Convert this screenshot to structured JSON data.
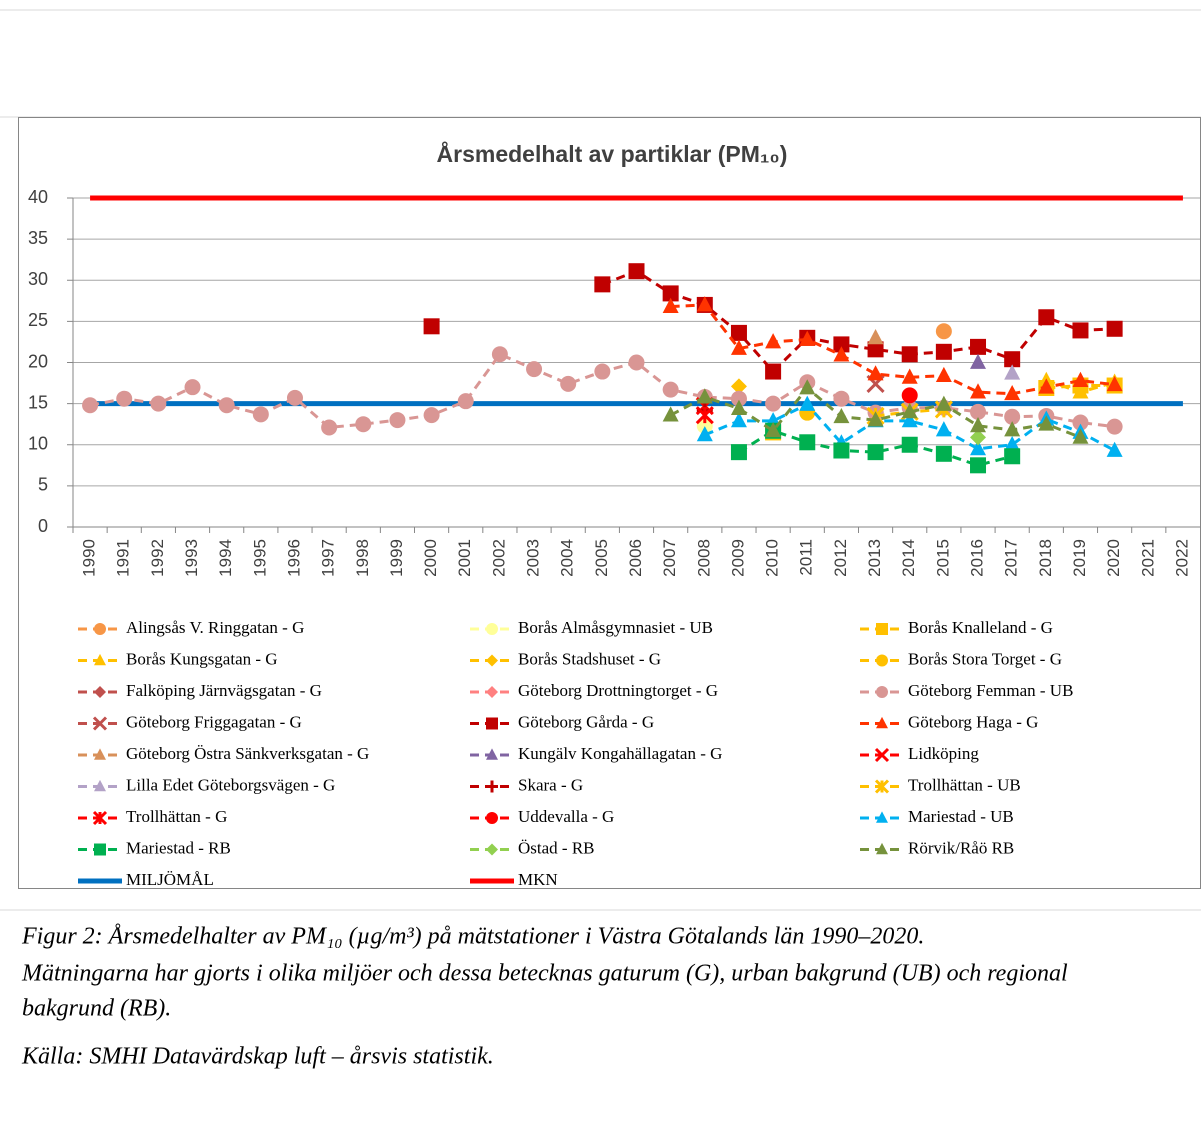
{
  "chart_data": {
    "type": "line",
    "title": "Årsmedelhalt av partiklar (PM₁₀)",
    "categories": [
      "1990",
      "1991",
      "1992",
      "1993",
      "1994",
      "1995",
      "1996",
      "1997",
      "1998",
      "1999",
      "2000",
      "2001",
      "2002",
      "2003",
      "2004",
      "2005",
      "2006",
      "2007",
      "2008",
      "2009",
      "2010",
      "2011",
      "2012",
      "2013",
      "2014",
      "2015",
      "2016",
      "2017",
      "2018",
      "2019",
      "2020",
      "2021",
      "2022"
    ],
    "ylim": [
      0,
      40
    ],
    "yticks": [
      0,
      5,
      10,
      15,
      20,
      25,
      30,
      35,
      40
    ],
    "grid": true,
    "legend": "bottom",
    "series": [
      {
        "name": "Alingsås V. Ringgatan - G",
        "color": "#f79646",
        "marker": "circle",
        "values": [
          null,
          null,
          null,
          null,
          null,
          null,
          null,
          null,
          null,
          null,
          null,
          null,
          null,
          null,
          null,
          null,
          null,
          null,
          null,
          null,
          null,
          null,
          null,
          null,
          null,
          23.8,
          null,
          null,
          null,
          null,
          null,
          null,
          null
        ]
      },
      {
        "name": "Borås Almåsgymnasiet - UB",
        "color": "#ffff99",
        "marker": "circle",
        "values": [
          null,
          null,
          null,
          null,
          null,
          null,
          null,
          null,
          null,
          null,
          null,
          null,
          null,
          null,
          null,
          null,
          null,
          null,
          12.3,
          null,
          null,
          null,
          null,
          null,
          null,
          null,
          null,
          null,
          null,
          null,
          null,
          null,
          null
        ]
      },
      {
        "name": "Borås Knalleland - G",
        "color": "#ffc000",
        "marker": "square",
        "values": [
          null,
          null,
          null,
          null,
          null,
          null,
          null,
          null,
          null,
          null,
          null,
          null,
          null,
          null,
          null,
          null,
          null,
          null,
          null,
          null,
          11.5,
          null,
          null,
          null,
          null,
          null,
          null,
          null,
          16.9,
          17.2,
          17.2,
          null,
          null
        ]
      },
      {
        "name": "Borås Kungsgatan - G",
        "color": "#ffc000",
        "marker": "triangle",
        "values": [
          null,
          null,
          null,
          null,
          null,
          null,
          null,
          null,
          null,
          null,
          null,
          null,
          null,
          null,
          null,
          null,
          null,
          null,
          null,
          null,
          null,
          null,
          null,
          null,
          null,
          null,
          null,
          null,
          17.8,
          16.4,
          17.6,
          null,
          null
        ]
      },
      {
        "name": "Borås Stadshuset - G",
        "color": "#ffc000",
        "marker": "diamond",
        "values": [
          null,
          null,
          null,
          null,
          null,
          null,
          null,
          null,
          null,
          null,
          null,
          null,
          null,
          null,
          null,
          null,
          null,
          null,
          null,
          17.1,
          null,
          null,
          null,
          null,
          null,
          null,
          null,
          null,
          null,
          null,
          null,
          null,
          null
        ]
      },
      {
        "name": "Borås Stora Torget - G",
        "color": "#ffc000",
        "marker": "circle",
        "values": [
          null,
          null,
          null,
          null,
          null,
          null,
          null,
          null,
          null,
          null,
          null,
          null,
          null,
          null,
          null,
          null,
          null,
          null,
          null,
          null,
          null,
          13.9,
          null,
          null,
          null,
          null,
          null,
          null,
          null,
          null,
          null,
          null,
          null
        ]
      },
      {
        "name": "Falköping Järnvägsgatan - G",
        "color": "#c0504d",
        "marker": "diamond",
        "values": [
          null,
          null,
          null,
          null,
          null,
          null,
          null,
          null,
          null,
          null,
          null,
          null,
          null,
          null,
          null,
          null,
          null,
          null,
          null,
          null,
          null,
          null,
          null,
          null,
          null,
          null,
          null,
          null,
          null,
          null,
          null,
          null,
          null
        ]
      },
      {
        "name": "Göteborg Drottningtorget - G",
        "color": "#ff8080",
        "marker": "diamond",
        "values": [
          null,
          null,
          null,
          null,
          null,
          null,
          null,
          null,
          null,
          null,
          null,
          null,
          null,
          null,
          null,
          null,
          null,
          null,
          null,
          null,
          null,
          null,
          null,
          null,
          null,
          null,
          null,
          null,
          null,
          null,
          null,
          null,
          null
        ]
      },
      {
        "name": "Göteborg Femman - UB",
        "color": "#d99694",
        "marker": "circle",
        "values": [
          14.8,
          15.6,
          15.0,
          17.0,
          14.8,
          13.7,
          15.7,
          12.1,
          12.5,
          13.0,
          13.6,
          15.3,
          21.0,
          19.2,
          17.4,
          18.9,
          20.0,
          16.7,
          15.8,
          15.6,
          15.0,
          17.6,
          15.6,
          13.9,
          14.5,
          14.5,
          14.0,
          13.4,
          13.5,
          12.7,
          12.2,
          null,
          null
        ]
      },
      {
        "name": "Göteborg Friggagatan - G",
        "color": "#c0504d",
        "marker": "x",
        "values": [
          null,
          null,
          null,
          null,
          null,
          null,
          null,
          null,
          null,
          null,
          null,
          null,
          null,
          null,
          null,
          null,
          null,
          null,
          null,
          null,
          null,
          null,
          null,
          17.4,
          null,
          null,
          null,
          null,
          null,
          null,
          null,
          null,
          null
        ]
      },
      {
        "name": "Göteborg Gårda - G",
        "color": "#c00000",
        "marker": "square",
        "values": [
          null,
          null,
          null,
          null,
          null,
          null,
          null,
          null,
          null,
          null,
          24.4,
          null,
          null,
          null,
          null,
          29.5,
          31.1,
          28.4,
          27.0,
          23.6,
          18.9,
          23.0,
          22.2,
          21.6,
          21.0,
          21.3,
          21.9,
          20.4,
          25.5,
          23.9,
          24.1,
          null,
          null
        ]
      },
      {
        "name": "Göteborg Haga - G",
        "color": "#ff3300",
        "marker": "triangle",
        "values": [
          null,
          null,
          null,
          null,
          null,
          null,
          null,
          null,
          null,
          null,
          null,
          null,
          null,
          null,
          null,
          null,
          null,
          26.8,
          27.0,
          21.7,
          22.5,
          22.8,
          20.9,
          18.6,
          18.2,
          18.4,
          16.4,
          16.2,
          17.0,
          17.8,
          17.3,
          null,
          null
        ]
      },
      {
        "name": "Göteborg Östra Sänkverksgatan - G",
        "color": "#d8905a",
        "marker": "triangle",
        "values": [
          null,
          null,
          null,
          null,
          null,
          null,
          null,
          null,
          null,
          null,
          null,
          null,
          null,
          null,
          null,
          null,
          null,
          null,
          null,
          null,
          null,
          null,
          null,
          23.0,
          null,
          null,
          null,
          null,
          null,
          null,
          null,
          null,
          null
        ]
      },
      {
        "name": "Kungälv Kongahällagatan - G",
        "color": "#8064a2",
        "marker": "triangle",
        "values": [
          null,
          null,
          null,
          null,
          null,
          null,
          null,
          null,
          null,
          null,
          null,
          null,
          null,
          null,
          null,
          null,
          null,
          null,
          null,
          null,
          null,
          null,
          null,
          null,
          null,
          null,
          20.0,
          null,
          null,
          null,
          null,
          null,
          null
        ]
      },
      {
        "name": "Lidköping",
        "color": "#ff0000",
        "marker": "x",
        "values": [
          null,
          null,
          null,
          null,
          null,
          null,
          null,
          null,
          null,
          null,
          null,
          null,
          null,
          null,
          null,
          null,
          null,
          null,
          14.7,
          null,
          null,
          null,
          null,
          null,
          null,
          null,
          null,
          null,
          null,
          null,
          null,
          null,
          null
        ]
      },
      {
        "name": "Lilla Edet Göteborgsvägen - G",
        "color": "#b3a2c7",
        "marker": "triangle",
        "values": [
          null,
          null,
          null,
          null,
          null,
          null,
          null,
          null,
          null,
          null,
          null,
          null,
          null,
          null,
          null,
          null,
          null,
          null,
          null,
          null,
          null,
          null,
          null,
          null,
          null,
          null,
          null,
          18.7,
          null,
          null,
          null,
          null,
          null
        ]
      },
      {
        "name": "Skara - G",
        "color": "#c00000",
        "marker": "plus",
        "values": [
          null,
          null,
          null,
          null,
          null,
          null,
          null,
          null,
          null,
          null,
          null,
          null,
          null,
          null,
          null,
          null,
          null,
          null,
          14.2,
          null,
          null,
          null,
          null,
          null,
          null,
          null,
          null,
          null,
          null,
          null,
          null,
          null,
          null
        ]
      },
      {
        "name": "Trollhättan - UB",
        "color": "#ffc000",
        "marker": "star",
        "values": [
          null,
          null,
          null,
          null,
          null,
          null,
          null,
          null,
          null,
          null,
          null,
          null,
          null,
          null,
          null,
          null,
          null,
          null,
          null,
          null,
          null,
          null,
          null,
          13.5,
          14.0,
          14.3,
          null,
          null,
          null,
          null,
          null,
          null,
          null
        ]
      },
      {
        "name": "Trollhättan - G",
        "color": "#ff0000",
        "marker": "star",
        "values": [
          null,
          null,
          null,
          null,
          null,
          null,
          null,
          null,
          null,
          null,
          null,
          null,
          null,
          null,
          null,
          null,
          null,
          null,
          13.6,
          null,
          null,
          null,
          null,
          null,
          null,
          null,
          null,
          null,
          null,
          null,
          null,
          null,
          null
        ]
      },
      {
        "name": "Uddevalla - G",
        "color": "#ff0000",
        "marker": "circle",
        "values": [
          null,
          null,
          null,
          null,
          null,
          null,
          null,
          null,
          null,
          null,
          null,
          null,
          null,
          null,
          null,
          null,
          null,
          null,
          null,
          null,
          null,
          null,
          null,
          null,
          16.0,
          null,
          null,
          null,
          null,
          null,
          null,
          null,
          null
        ]
      },
      {
        "name": "Mariestad - UB",
        "color": "#00b0f0",
        "marker": "triangle",
        "values": [
          null,
          null,
          null,
          null,
          null,
          null,
          null,
          null,
          null,
          null,
          null,
          null,
          null,
          null,
          null,
          null,
          null,
          null,
          11.2,
          12.9,
          12.9,
          14.9,
          10.2,
          12.9,
          12.9,
          11.8,
          9.5,
          10.0,
          13.1,
          11.5,
          9.3,
          null,
          null
        ]
      },
      {
        "name": "Mariestad - RB",
        "color": "#00b050",
        "marker": "square",
        "values": [
          null,
          null,
          null,
          null,
          null,
          null,
          null,
          null,
          null,
          null,
          null,
          null,
          null,
          null,
          null,
          null,
          null,
          null,
          null,
          9.1,
          11.7,
          10.3,
          9.3,
          9.1,
          10.0,
          8.9,
          7.5,
          8.6,
          null,
          null,
          null,
          null,
          null
        ]
      },
      {
        "name": "Östad - RB",
        "color": "#92d050",
        "marker": "diamond",
        "values": [
          null,
          null,
          null,
          null,
          null,
          null,
          null,
          null,
          null,
          null,
          null,
          null,
          null,
          null,
          null,
          null,
          null,
          null,
          null,
          null,
          null,
          null,
          null,
          null,
          null,
          null,
          10.9,
          null,
          null,
          null,
          null,
          null,
          null
        ]
      },
      {
        "name": "Rörvik/Råö RB",
        "color": "#76923c",
        "marker": "triangle",
        "values": [
          null,
          null,
          null,
          null,
          null,
          null,
          null,
          null,
          null,
          null,
          null,
          null,
          null,
          null,
          null,
          null,
          null,
          13.6,
          15.8,
          14.4,
          11.7,
          16.9,
          13.4,
          13.0,
          14.0,
          14.9,
          12.3,
          11.8,
          12.5,
          10.9,
          null,
          null,
          null
        ]
      },
      {
        "name": "MILJÖMÅL",
        "color": "#0070c0",
        "marker": "none",
        "line": "solid",
        "values": [
          15,
          15,
          15,
          15,
          15,
          15,
          15,
          15,
          15,
          15,
          15,
          15,
          15,
          15,
          15,
          15,
          15,
          15,
          15,
          15,
          15,
          15,
          15,
          15,
          15,
          15,
          15,
          15,
          15,
          15,
          15,
          15,
          15
        ]
      },
      {
        "name": "MKN",
        "color": "#ff0000",
        "marker": "none",
        "line": "solid",
        "values": [
          40,
          40,
          40,
          40,
          40,
          40,
          40,
          40,
          40,
          40,
          40,
          40,
          40,
          40,
          40,
          40,
          40,
          40,
          40,
          40,
          40,
          40,
          40,
          40,
          40,
          40,
          40,
          40,
          40,
          40,
          40,
          40,
          40
        ]
      }
    ]
  },
  "caption": [
    "Figur 2: Årsmedelhalter av PM₁₀ (µg/m³) på mätstationer i Västra Götalands län 1990–2020.",
    "Mätningarna har gjorts i olika miljöer och dessa betecknas gaturum (G), urban bakgrund (UB) och regional",
    "bakgrund (RB)."
  ],
  "source": "Källa: SMHI Datavärdskap luft – årsvis statistik."
}
